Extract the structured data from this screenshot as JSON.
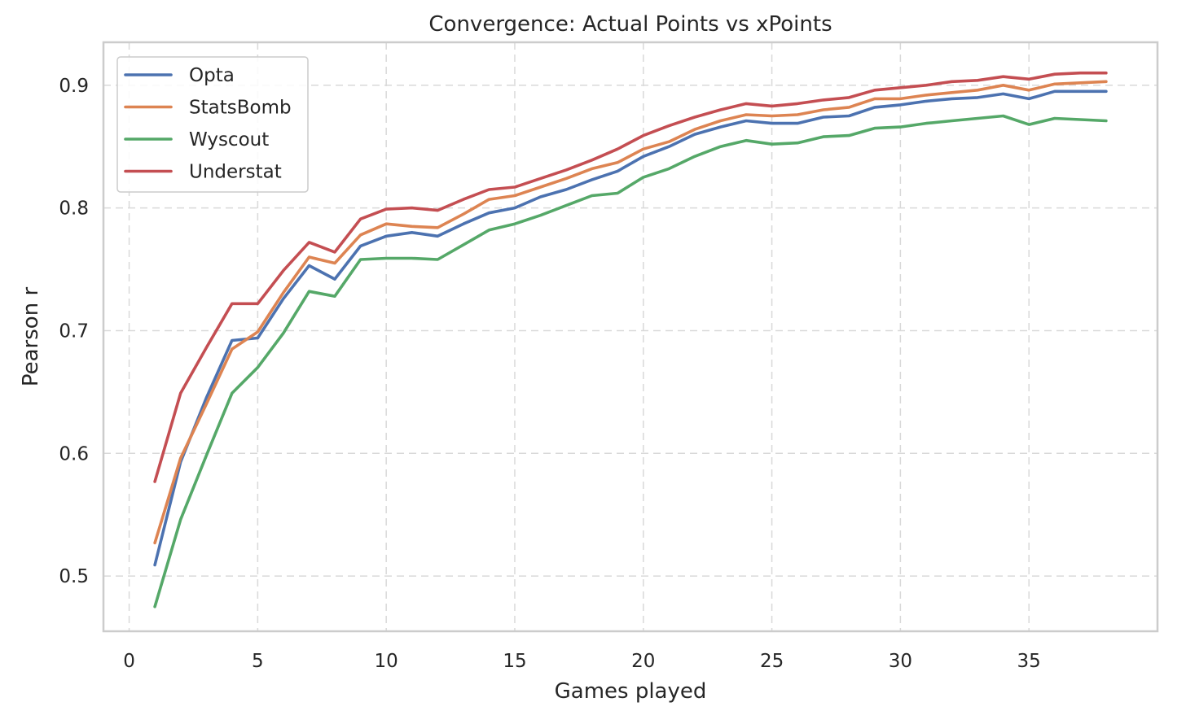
{
  "chart_data": {
    "type": "line",
    "title": "Convergence: Actual Points vs xPoints",
    "xlabel": "Games played",
    "ylabel": "Pearson r",
    "xlim": [
      -1,
      40
    ],
    "ylim": [
      0.455,
      0.935
    ],
    "xticks": [
      0,
      5,
      10,
      15,
      20,
      25,
      30,
      35
    ],
    "yticks": [
      0.5,
      0.6,
      0.7,
      0.8,
      0.9
    ],
    "grid": true,
    "legend_position": "top-left",
    "x": [
      1,
      2,
      3,
      4,
      5,
      6,
      7,
      8,
      9,
      10,
      11,
      12,
      13,
      14,
      15,
      16,
      17,
      18,
      19,
      20,
      21,
      22,
      23,
      24,
      25,
      26,
      27,
      28,
      29,
      30,
      31,
      32,
      33,
      34,
      35,
      36,
      37,
      38
    ],
    "series": [
      {
        "name": "Opta",
        "color": "#4c72b0",
        "values": [
          0.509,
          0.593,
          0.645,
          0.692,
          0.694,
          0.726,
          0.753,
          0.742,
          0.769,
          0.777,
          0.78,
          0.777,
          0.787,
          0.796,
          0.8,
          0.809,
          0.815,
          0.823,
          0.83,
          0.842,
          0.85,
          0.86,
          0.866,
          0.871,
          0.869,
          0.869,
          0.874,
          0.875,
          0.882,
          0.884,
          0.887,
          0.889,
          0.89,
          0.893,
          0.889,
          0.895,
          0.895,
          0.895
        ]
      },
      {
        "name": "StatsBomb",
        "color": "#dd8452",
        "values": [
          0.527,
          0.596,
          0.64,
          0.685,
          0.699,
          0.731,
          0.76,
          0.755,
          0.778,
          0.787,
          0.785,
          0.784,
          0.795,
          0.807,
          0.81,
          0.817,
          0.824,
          0.832,
          0.837,
          0.848,
          0.854,
          0.864,
          0.871,
          0.876,
          0.875,
          0.876,
          0.88,
          0.882,
          0.889,
          0.889,
          0.892,
          0.894,
          0.896,
          0.9,
          0.896,
          0.901,
          0.902,
          0.903
        ]
      },
      {
        "name": "Wyscout",
        "color": "#55a868",
        "values": [
          0.475,
          0.546,
          0.598,
          0.649,
          0.67,
          0.698,
          0.732,
          0.728,
          0.758,
          0.759,
          0.759,
          0.758,
          0.77,
          0.782,
          0.787,
          0.794,
          0.802,
          0.81,
          0.812,
          0.825,
          0.832,
          0.842,
          0.85,
          0.855,
          0.852,
          0.853,
          0.858,
          0.859,
          0.865,
          0.866,
          0.869,
          0.871,
          0.873,
          0.875,
          0.868,
          0.873,
          0.872,
          0.871
        ]
      },
      {
        "name": "Understat",
        "color": "#c44e52",
        "values": [
          0.577,
          0.649,
          0.686,
          0.722,
          0.722,
          0.749,
          0.772,
          0.764,
          0.791,
          0.799,
          0.8,
          0.798,
          0.807,
          0.815,
          0.817,
          0.824,
          0.831,
          0.839,
          0.848,
          0.859,
          0.867,
          0.874,
          0.88,
          0.885,
          0.883,
          0.885,
          0.888,
          0.89,
          0.896,
          0.898,
          0.9,
          0.903,
          0.904,
          0.907,
          0.905,
          0.909,
          0.91,
          0.91
        ]
      }
    ]
  }
}
